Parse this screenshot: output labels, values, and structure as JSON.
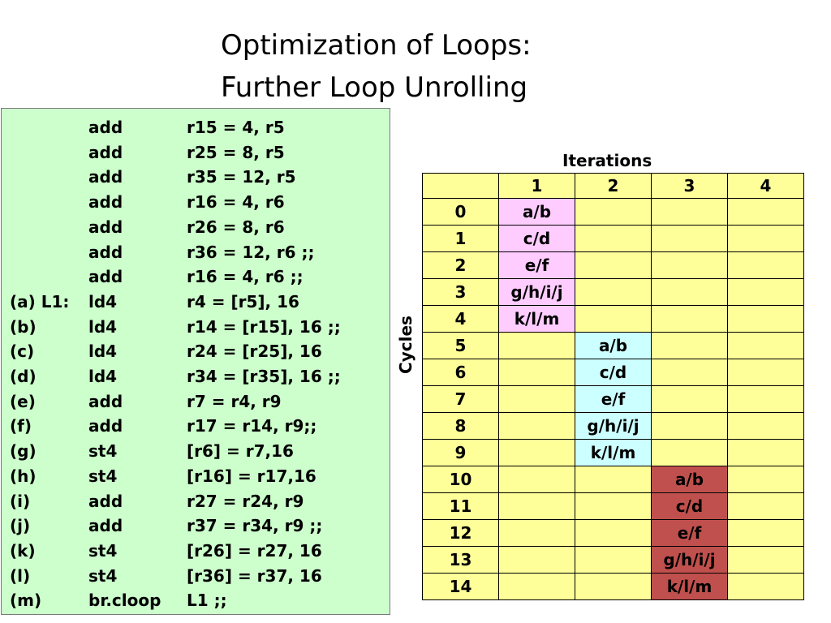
{
  "title": [
    "Optimization of Loops:",
    "Further Loop Unrolling"
  ],
  "code": [
    {
      "label": "",
      "op": "add",
      "args": "r15 = 4, r5"
    },
    {
      "label": "",
      "op": "add",
      "args": "r25 = 8, r5"
    },
    {
      "label": "",
      "op": "add",
      "args": "r35 = 12, r5"
    },
    {
      "label": "",
      "op": "add",
      "args": "r16 = 4, r6"
    },
    {
      "label": "",
      "op": "add",
      "args": "r26 = 8, r6"
    },
    {
      "label": "",
      "op": "add",
      "args": "r36 = 12, r6 ;;"
    },
    {
      "label": "",
      "op": "add",
      "args": "r16 = 4, r6 ;;"
    },
    {
      "label": "(a) L1:",
      "op": "ld4",
      "args": "r4 = [r5], 16"
    },
    {
      "label": "(b)",
      "op": "ld4",
      "args": "r14 = [r15], 16  ;;"
    },
    {
      "label": "(c)",
      "op": "ld4",
      "args": "r24 = [r25], 16"
    },
    {
      "label": "(d)",
      "op": "ld4",
      "args": "r34 = [r35], 16 ;;"
    },
    {
      "label": "(e)",
      "op": "add",
      "args": "r7 = r4, r9"
    },
    {
      "label": "(f)",
      "op": "add",
      "args": "r17 = r14, r9;;"
    },
    {
      "label": "(g)",
      "op": "st4",
      "args": "[r6] = r7,16"
    },
    {
      "label": "(h)",
      "op": "st4",
      "args": "[r16] = r17,16"
    },
    {
      "label": "(i)",
      "op": "add",
      "args": "r27 = r24, r9"
    },
    {
      "label": "(j)",
      "op": "add",
      "args": "r37 = r34, r9 ;;"
    },
    {
      "label": "(k)",
      "op": "st4",
      "args": "[r26] = r27, 16"
    },
    {
      "label": "(l)",
      "op": "st4",
      "args": "[r36] = r37, 16"
    },
    {
      "label": "(m)",
      "op": "br.cloop",
      "args": "L1 ;;"
    }
  ],
  "table": {
    "iterations_label": "Iterations",
    "cycles_label": "Cycles",
    "columns": [
      "1",
      "2",
      "3",
      "4"
    ],
    "rows": [
      {
        "cycle": "0",
        "cells": [
          "a/b",
          "",
          "",
          ""
        ]
      },
      {
        "cycle": "1",
        "cells": [
          "c/d",
          "",
          "",
          ""
        ]
      },
      {
        "cycle": "2",
        "cells": [
          "e/f",
          "",
          "",
          ""
        ]
      },
      {
        "cycle": "3",
        "cells": [
          "g/h/i/j",
          "",
          "",
          ""
        ]
      },
      {
        "cycle": "4",
        "cells": [
          "k/l/m",
          "",
          "",
          ""
        ]
      },
      {
        "cycle": "5",
        "cells": [
          "",
          "a/b",
          "",
          ""
        ]
      },
      {
        "cycle": "6",
        "cells": [
          "",
          "c/d",
          "",
          ""
        ]
      },
      {
        "cycle": "7",
        "cells": [
          "",
          "e/f",
          "",
          ""
        ]
      },
      {
        "cycle": "8",
        "cells": [
          "",
          "g/h/i/j",
          "",
          ""
        ]
      },
      {
        "cycle": "9",
        "cells": [
          "",
          "k/l/m",
          "",
          ""
        ]
      },
      {
        "cycle": "10",
        "cells": [
          "",
          "",
          "a/b",
          ""
        ]
      },
      {
        "cycle": "11",
        "cells": [
          "",
          "",
          "c/d",
          ""
        ]
      },
      {
        "cycle": "12",
        "cells": [
          "",
          "",
          "e/f",
          ""
        ]
      },
      {
        "cycle": "13",
        "cells": [
          "",
          "",
          "g/h/i/j",
          ""
        ]
      },
      {
        "cycle": "14",
        "cells": [
          "",
          "",
          "k/l/m",
          ""
        ]
      }
    ],
    "iteration_colors": [
      "pink",
      "cyan",
      "red",
      ""
    ]
  },
  "colors": {
    "code_bg": "#ccffcc",
    "table_bg": "#ffff99",
    "iter1": "#ffccff",
    "iter2": "#ccffff",
    "iter3": "#c0504d"
  }
}
